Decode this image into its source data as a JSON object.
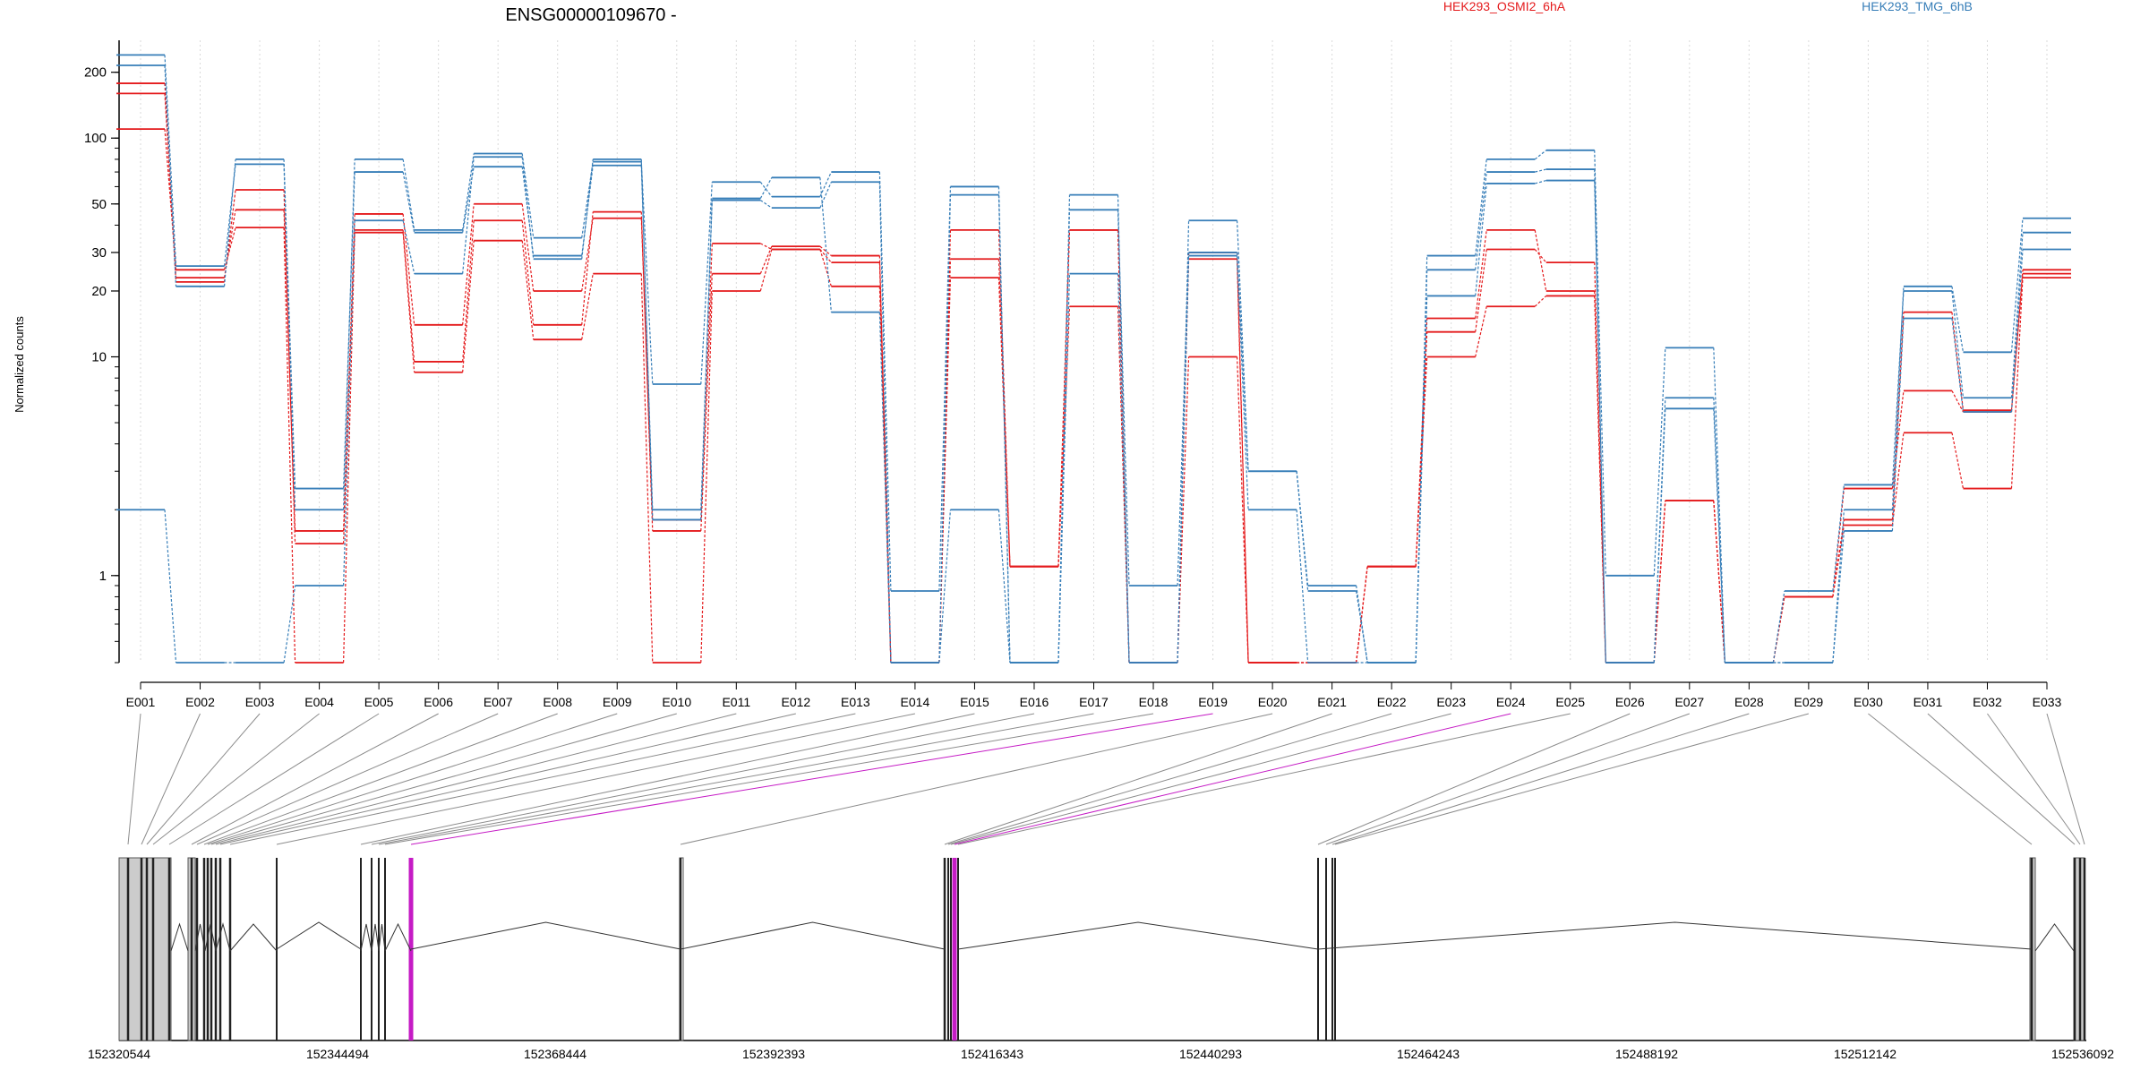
{
  "chart_data": {
    "type": "line",
    "title": "ENSG00000109670 -",
    "ylabel": "Normalized counts",
    "ylim": [
      0.4,
      280
    ],
    "yscale": "log",
    "yticks": [
      1,
      10,
      20,
      30,
      50,
      100,
      200
    ],
    "grid": "vertical dotted",
    "legend_position": "top",
    "legend": [
      {
        "label": "HEK293_OSMI2_6hA",
        "color": "#e41a1c"
      },
      {
        "label": "HEK293_TMG_6hB",
        "color": "#377eb8"
      }
    ],
    "categories": [
      "E001",
      "E002",
      "E003",
      "E004",
      "E005",
      "E006",
      "E007",
      "E008",
      "E009",
      "E010",
      "E011",
      "E012",
      "E013",
      "E014",
      "E015",
      "E016",
      "E017",
      "E018",
      "E019",
      "E020",
      "E021",
      "E022",
      "E023",
      "E024",
      "E025",
      "E026",
      "E027",
      "E028",
      "E029",
      "E030",
      "E031",
      "E032",
      "E033"
    ],
    "series": [
      {
        "group": "HEK293_OSMI2_6hA",
        "color": "#e41a1c",
        "values": [
          178,
          23,
          47,
          1.6,
          38,
          9.5,
          42,
          14,
          46,
          1.6,
          24,
          32,
          29,
          0.4,
          38,
          1.1,
          38,
          0.4,
          28,
          0.4,
          0.4,
          1.1,
          15,
          38,
          20,
          0.4,
          2.2,
          0.4,
          0.8,
          1.8,
          16,
          5.7,
          25
        ]
      },
      {
        "group": "HEK293_OSMI2_6hA",
        "color": "#e41a1c",
        "values": [
          160,
          22,
          58,
          1.4,
          45,
          14,
          50,
          20,
          43,
          1.8,
          33,
          31,
          21,
          0.4,
          28,
          1.1,
          38,
          0.4,
          30,
          0.4,
          0.4,
          1.1,
          13,
          31,
          27,
          0.4,
          2.2,
          0.4,
          0.8,
          2.5,
          7,
          5.6,
          24
        ]
      },
      {
        "group": "HEK293_OSMI2_6hA",
        "color": "#e41a1c",
        "values": [
          110,
          25,
          39,
          0.4,
          37,
          8.5,
          34,
          12,
          24,
          0.4,
          20,
          31,
          27,
          0.4,
          23,
          1.1,
          17,
          0.4,
          10,
          0.4,
          0.4,
          1.1,
          10,
          17,
          19,
          0.4,
          2.2,
          0.4,
          0.8,
          1.7,
          4.5,
          2.5,
          23
        ]
      },
      {
        "group": "HEK293_TMG_6hB",
        "color": "#377eb8",
        "values": [
          240,
          26,
          76,
          2.0,
          80,
          38,
          85,
          35,
          78,
          7.5,
          63,
          54,
          70,
          0.85,
          60,
          0.4,
          55,
          0.4,
          42,
          3.0,
          0.9,
          0.4,
          29,
          80,
          88,
          1.0,
          11,
          0.4,
          0.4,
          2.0,
          21,
          10.5,
          43
        ]
      },
      {
        "group": "HEK293_TMG_6hB",
        "color": "#377eb8",
        "values": [
          215,
          21,
          80,
          2.5,
          70,
          37,
          74,
          29,
          75,
          2.0,
          52,
          48,
          63,
          0.4,
          55,
          0.4,
          47,
          0.9,
          30,
          3.0,
          0.85,
          0.4,
          25,
          70,
          72,
          0.4,
          6.5,
          0.4,
          0.85,
          2.6,
          20,
          6.5,
          37
        ]
      },
      {
        "group": "HEK293_TMG_6hB",
        "color": "#377eb8",
        "values": [
          2.0,
          0.4,
          0.4,
          0.9,
          42,
          24,
          82,
          28,
          80,
          1.8,
          53,
          66,
          16,
          0.4,
          2.0,
          0.4,
          24,
          0.4,
          29,
          2.0,
          0.4,
          0.4,
          19,
          62,
          64,
          0.4,
          5.8,
          0.4,
          0.4,
          1.6,
          15,
          5.6,
          31
        ]
      }
    ],
    "gene_model": {
      "coordinate_labels": [
        "152320544",
        "152344494",
        "152368444",
        "152392393",
        "152416343",
        "152440293",
        "152464243",
        "152488192",
        "152512142",
        "152536092"
      ],
      "highlight_color": "#c51bc5",
      "exon_fill": "#cccccc"
    }
  }
}
